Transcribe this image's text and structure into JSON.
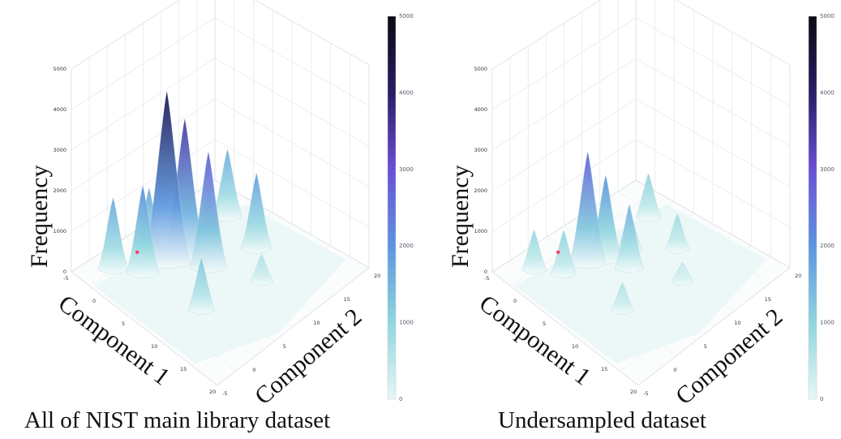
{
  "chart_data": [
    {
      "type": "surface3d",
      "caption": "All of NIST main library dataset",
      "xlabel": "Component 1",
      "ylabel": "Component 2",
      "zlabel": "Frequency",
      "xlim": [
        -5,
        20
      ],
      "ylim": [
        -5,
        20
      ],
      "zlim": [
        0,
        5000
      ],
      "x_ticks": [
        "-5",
        "0",
        "5",
        "10",
        "15",
        "20"
      ],
      "y_ticks": [
        "-5",
        "0",
        "5",
        "10",
        "15",
        "20"
      ],
      "z_ticks": [
        "0",
        "1000",
        "2000",
        "3000",
        "4000",
        "5000"
      ],
      "colorbar": {
        "range": [
          0,
          5000
        ],
        "ticks": [
          "0",
          "1000",
          "2000",
          "3000",
          "4000",
          "5000"
        ],
        "colors": [
          "#e6f7f5",
          "#8fd6df",
          "#5b95e0",
          "#6a4fd6",
          "#2b1c66",
          "#0a0a12"
        ]
      },
      "peaks": [
        {
          "x": 2,
          "y": 4,
          "height": 4200
        },
        {
          "x": 3,
          "y": 6,
          "height": 3400
        },
        {
          "x": 6,
          "y": 7,
          "height": 2800
        },
        {
          "x": 1,
          "y": 1,
          "height": 2100
        },
        {
          "x": 0,
          "y": 3,
          "height": 1700
        },
        {
          "x": 4,
          "y": 9,
          "height": 1400
        },
        {
          "x": -2,
          "y": -1,
          "height": 1700
        },
        {
          "x": 2,
          "y": 14,
          "height": 1600
        },
        {
          "x": 8,
          "y": 13,
          "height": 1800
        },
        {
          "x": 10,
          "y": 2,
          "height": 1200
        },
        {
          "x": 12,
          "y": 10,
          "height": 600
        }
      ],
      "highlight_point": {
        "x": -1,
        "y": 2
      }
    },
    {
      "type": "surface3d",
      "caption": "Undersampled dataset",
      "xlabel": "Component 1",
      "ylabel": "Component 2",
      "zlabel": "Frequency",
      "xlim": [
        -5,
        20
      ],
      "ylim": [
        -5,
        20
      ],
      "zlim": [
        0,
        5000
      ],
      "x_ticks": [
        "-5",
        "0",
        "5",
        "10",
        "15",
        "20"
      ],
      "y_ticks": [
        "-5",
        "0",
        "5",
        "10",
        "15",
        "20"
      ],
      "z_ticks": [
        "0",
        "1000",
        "2000",
        "3000",
        "4000",
        "5000"
      ],
      "colorbar": {
        "range": [
          0,
          5000
        ],
        "ticks": [
          "0",
          "1000",
          "2000",
          "3000",
          "4000",
          "5000"
        ],
        "colors": [
          "#e6f7f5",
          "#8fd6df",
          "#5b95e0",
          "#6a4fd6",
          "#2b1c66",
          "#0a0a12"
        ]
      },
      "peaks": [
        {
          "x": 2,
          "y": 4,
          "height": 2700
        },
        {
          "x": 3,
          "y": 6,
          "height": 2000
        },
        {
          "x": 6,
          "y": 7,
          "height": 1500
        },
        {
          "x": 1,
          "y": 1,
          "height": 1000
        },
        {
          "x": 4,
          "y": 9,
          "height": 900
        },
        {
          "x": -2,
          "y": -1,
          "height": 900
        },
        {
          "x": 2,
          "y": 14,
          "height": 1000
        },
        {
          "x": 8,
          "y": 13,
          "height": 800
        },
        {
          "x": 10,
          "y": 2,
          "height": 600
        },
        {
          "x": 12,
          "y": 10,
          "height": 400
        }
      ],
      "highlight_point": {
        "x": -1,
        "y": 2
      }
    }
  ]
}
